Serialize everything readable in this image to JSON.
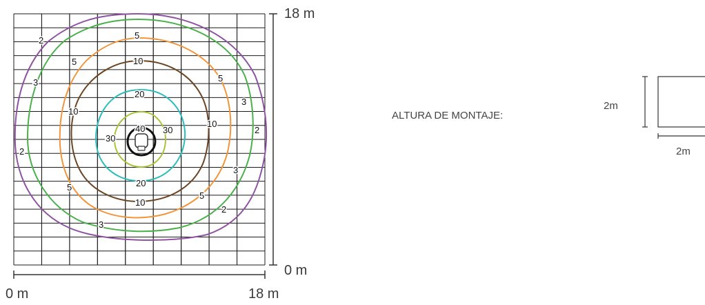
{
  "axes": {
    "x_start": "0 m",
    "x_end": "18 m",
    "y_start": "0 m",
    "y_end": "18 m"
  },
  "grid": {
    "cells": 9
  },
  "contours": [
    {
      "level": "2",
      "color": "#8e52a1",
      "labels": [
        "2",
        "2",
        "2",
        "2",
        "2"
      ]
    },
    {
      "level": "3",
      "color": "#49b04a",
      "labels": [
        "3",
        "3",
        "3",
        "3"
      ]
    },
    {
      "level": "5",
      "color": "#f2953a",
      "labels": [
        "5",
        "5",
        "5",
        "5",
        "5",
        "5"
      ]
    },
    {
      "level": "10",
      "color": "#6b4423",
      "labels": [
        "10",
        "10",
        "10",
        "10",
        "10"
      ]
    },
    {
      "level": "20",
      "color": "#2bbcbc",
      "labels": [
        "20",
        "20"
      ]
    },
    {
      "level": "30",
      "color": "#a8c53a",
      "labels": [
        "30",
        "30"
      ]
    },
    {
      "level": "40",
      "color": "#111111",
      "labels": [
        "40"
      ]
    }
  ],
  "mounting": {
    "title": "ALTURA DE MONTAJE:",
    "height_label": "2m",
    "width_label": "2m"
  }
}
